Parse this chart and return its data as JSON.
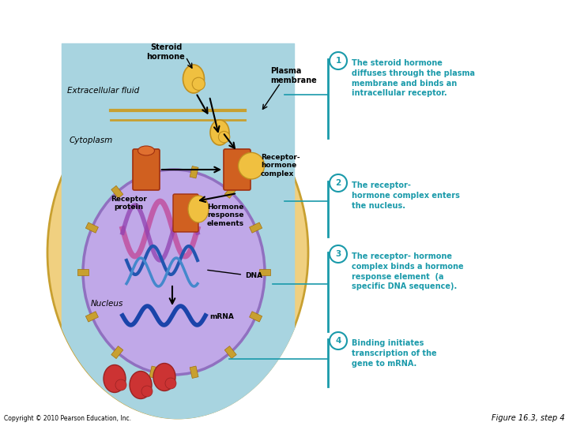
{
  "bg_color": "#ffffff",
  "cell_fill": "#f0d080",
  "cell_edge": "#c8a030",
  "ext_fluid_fill": "#a8d4e0",
  "nucleus_fill": "#c0a8e8",
  "nucleus_edge": "#9070c0",
  "teal": "#1a9aaa",
  "dark_text": "#000000",
  "membrane_color": "#c8a030",
  "receptor_fill": "#d06020",
  "receptor_edge": "#a03010",
  "hormone_fill": "#f0c040",
  "hormone_edge": "#c09020",
  "dna_blue": "#2255b0",
  "dna_light": "#4488cc",
  "mrna_blue": "#1a44aa",
  "ribbon1": "#c050a0",
  "ribbon2": "#9040b0",
  "blob_fill": "#cc3333",
  "blob_edge": "#992222",
  "copyright": "Copyright © 2010 Pearson Education, Inc.",
  "figure_label": "Figure 16.3, step 4",
  "ann1": "① The steroid hormone\ndiffuses through the plasma\nmembrane and binds an\nintracellular receptor.",
  "ann2": "② The receptor-\nhormone complex enters\nthe nucleus.",
  "ann3": "③ The receptor- hormone\ncomplex binds a hormone\nresponse element  (a\nspecific DNA sequence).",
  "ann4": "④ Binding initiates\ntranscription of the\ngene to mRNA."
}
